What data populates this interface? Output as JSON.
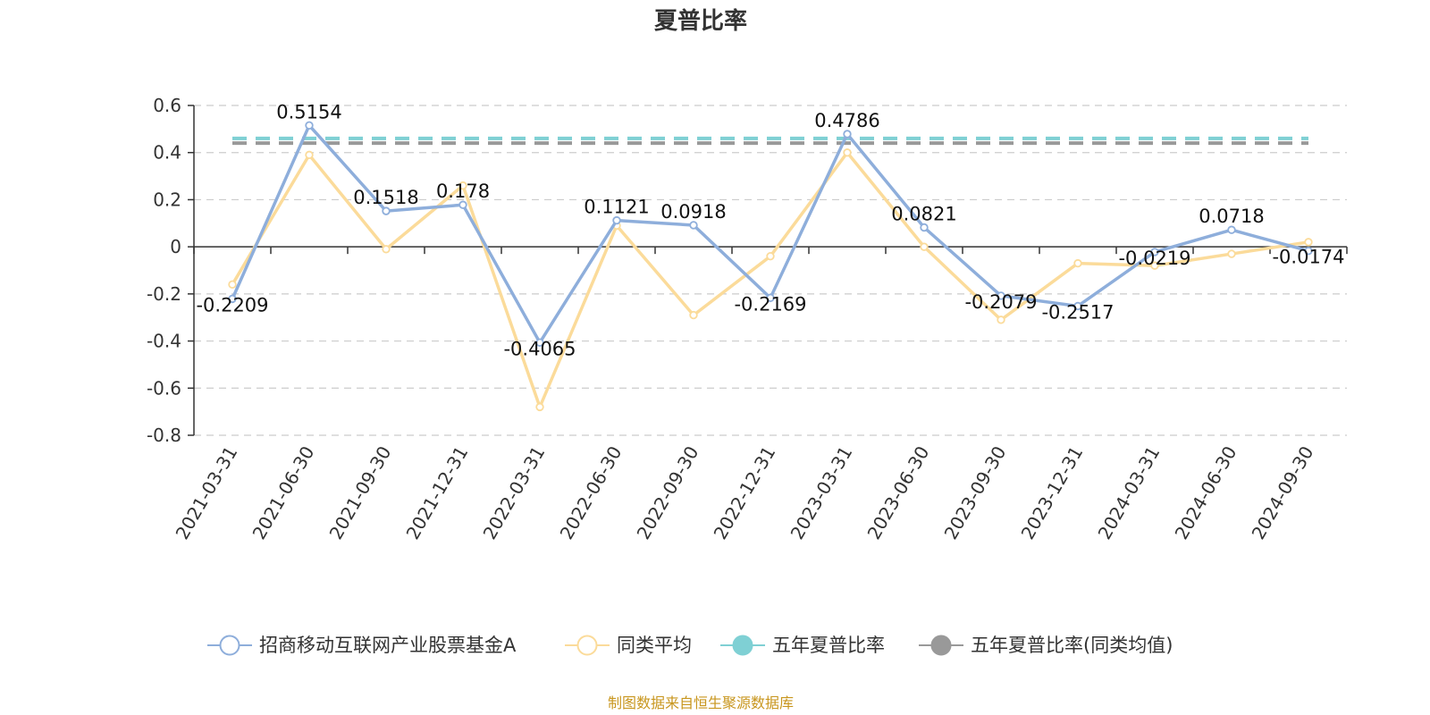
{
  "colors": {
    "fund": "#8eaedb",
    "avg": "#fbdb9a",
    "five_year": "#7fd0d4",
    "five_year_avg": "#999999",
    "axis": "#333333",
    "grid": "#cccccc",
    "source": "#c8961e"
  },
  "chart_data": {
    "type": "line",
    "title": "夏普比率",
    "categories": [
      "2021-03-31",
      "2021-06-30",
      "2021-09-30",
      "2021-12-31",
      "2022-03-31",
      "2022-06-30",
      "2022-09-30",
      "2022-12-31",
      "2023-03-31",
      "2023-06-30",
      "2023-09-30",
      "2023-12-31",
      "2024-03-31",
      "2024-06-30",
      "2024-09-30"
    ],
    "ylim": [
      -0.8,
      0.6
    ],
    "yticks": [
      "0.6",
      "0.4",
      "0.2",
      "0",
      "-0.2",
      "-0.4",
      "-0.6",
      "-0.8"
    ],
    "grid": true,
    "legend_position": "bottom",
    "series": [
      {
        "name": "招商移动互联网产业股票基金A",
        "values": [
          -0.2209,
          0.5154,
          0.1518,
          0.178,
          -0.4065,
          0.1121,
          0.0918,
          -0.2169,
          0.4786,
          0.0821,
          -0.2079,
          -0.2517,
          -0.0219,
          0.0718,
          -0.0174
        ],
        "labels": [
          "-0.2209",
          "0.5154",
          "0.1518",
          "0.178",
          "-0.4065",
          "0.1121",
          "0.0918",
          "-0.2169",
          "0.4786",
          "0.0821",
          "-0.2079",
          "-0.2517",
          "-0.0219",
          "0.0718",
          "-0.0174"
        ]
      },
      {
        "name": "同类平均",
        "values": [
          -0.16,
          0.39,
          -0.01,
          0.26,
          -0.68,
          0.09,
          -0.29,
          -0.04,
          0.4,
          0.0,
          -0.31,
          -0.07,
          -0.08,
          -0.03,
          0.02
        ]
      },
      {
        "name": "五年夏普比率",
        "values": [
          0.46,
          0.46,
          0.46,
          0.46,
          0.46,
          0.46,
          0.46,
          0.46,
          0.46,
          0.46,
          0.46,
          0.46,
          0.46,
          0.46,
          0.46
        ]
      },
      {
        "name": "五年夏普比率(同类均值)",
        "values": [
          0.44,
          0.44,
          0.44,
          0.44,
          0.44,
          0.44,
          0.44,
          0.44,
          0.44,
          0.44,
          0.44,
          0.44,
          0.44,
          0.44,
          0.44
        ]
      }
    ]
  },
  "footer": {
    "source_text": "制图数据来自恒生聚源数据库"
  }
}
